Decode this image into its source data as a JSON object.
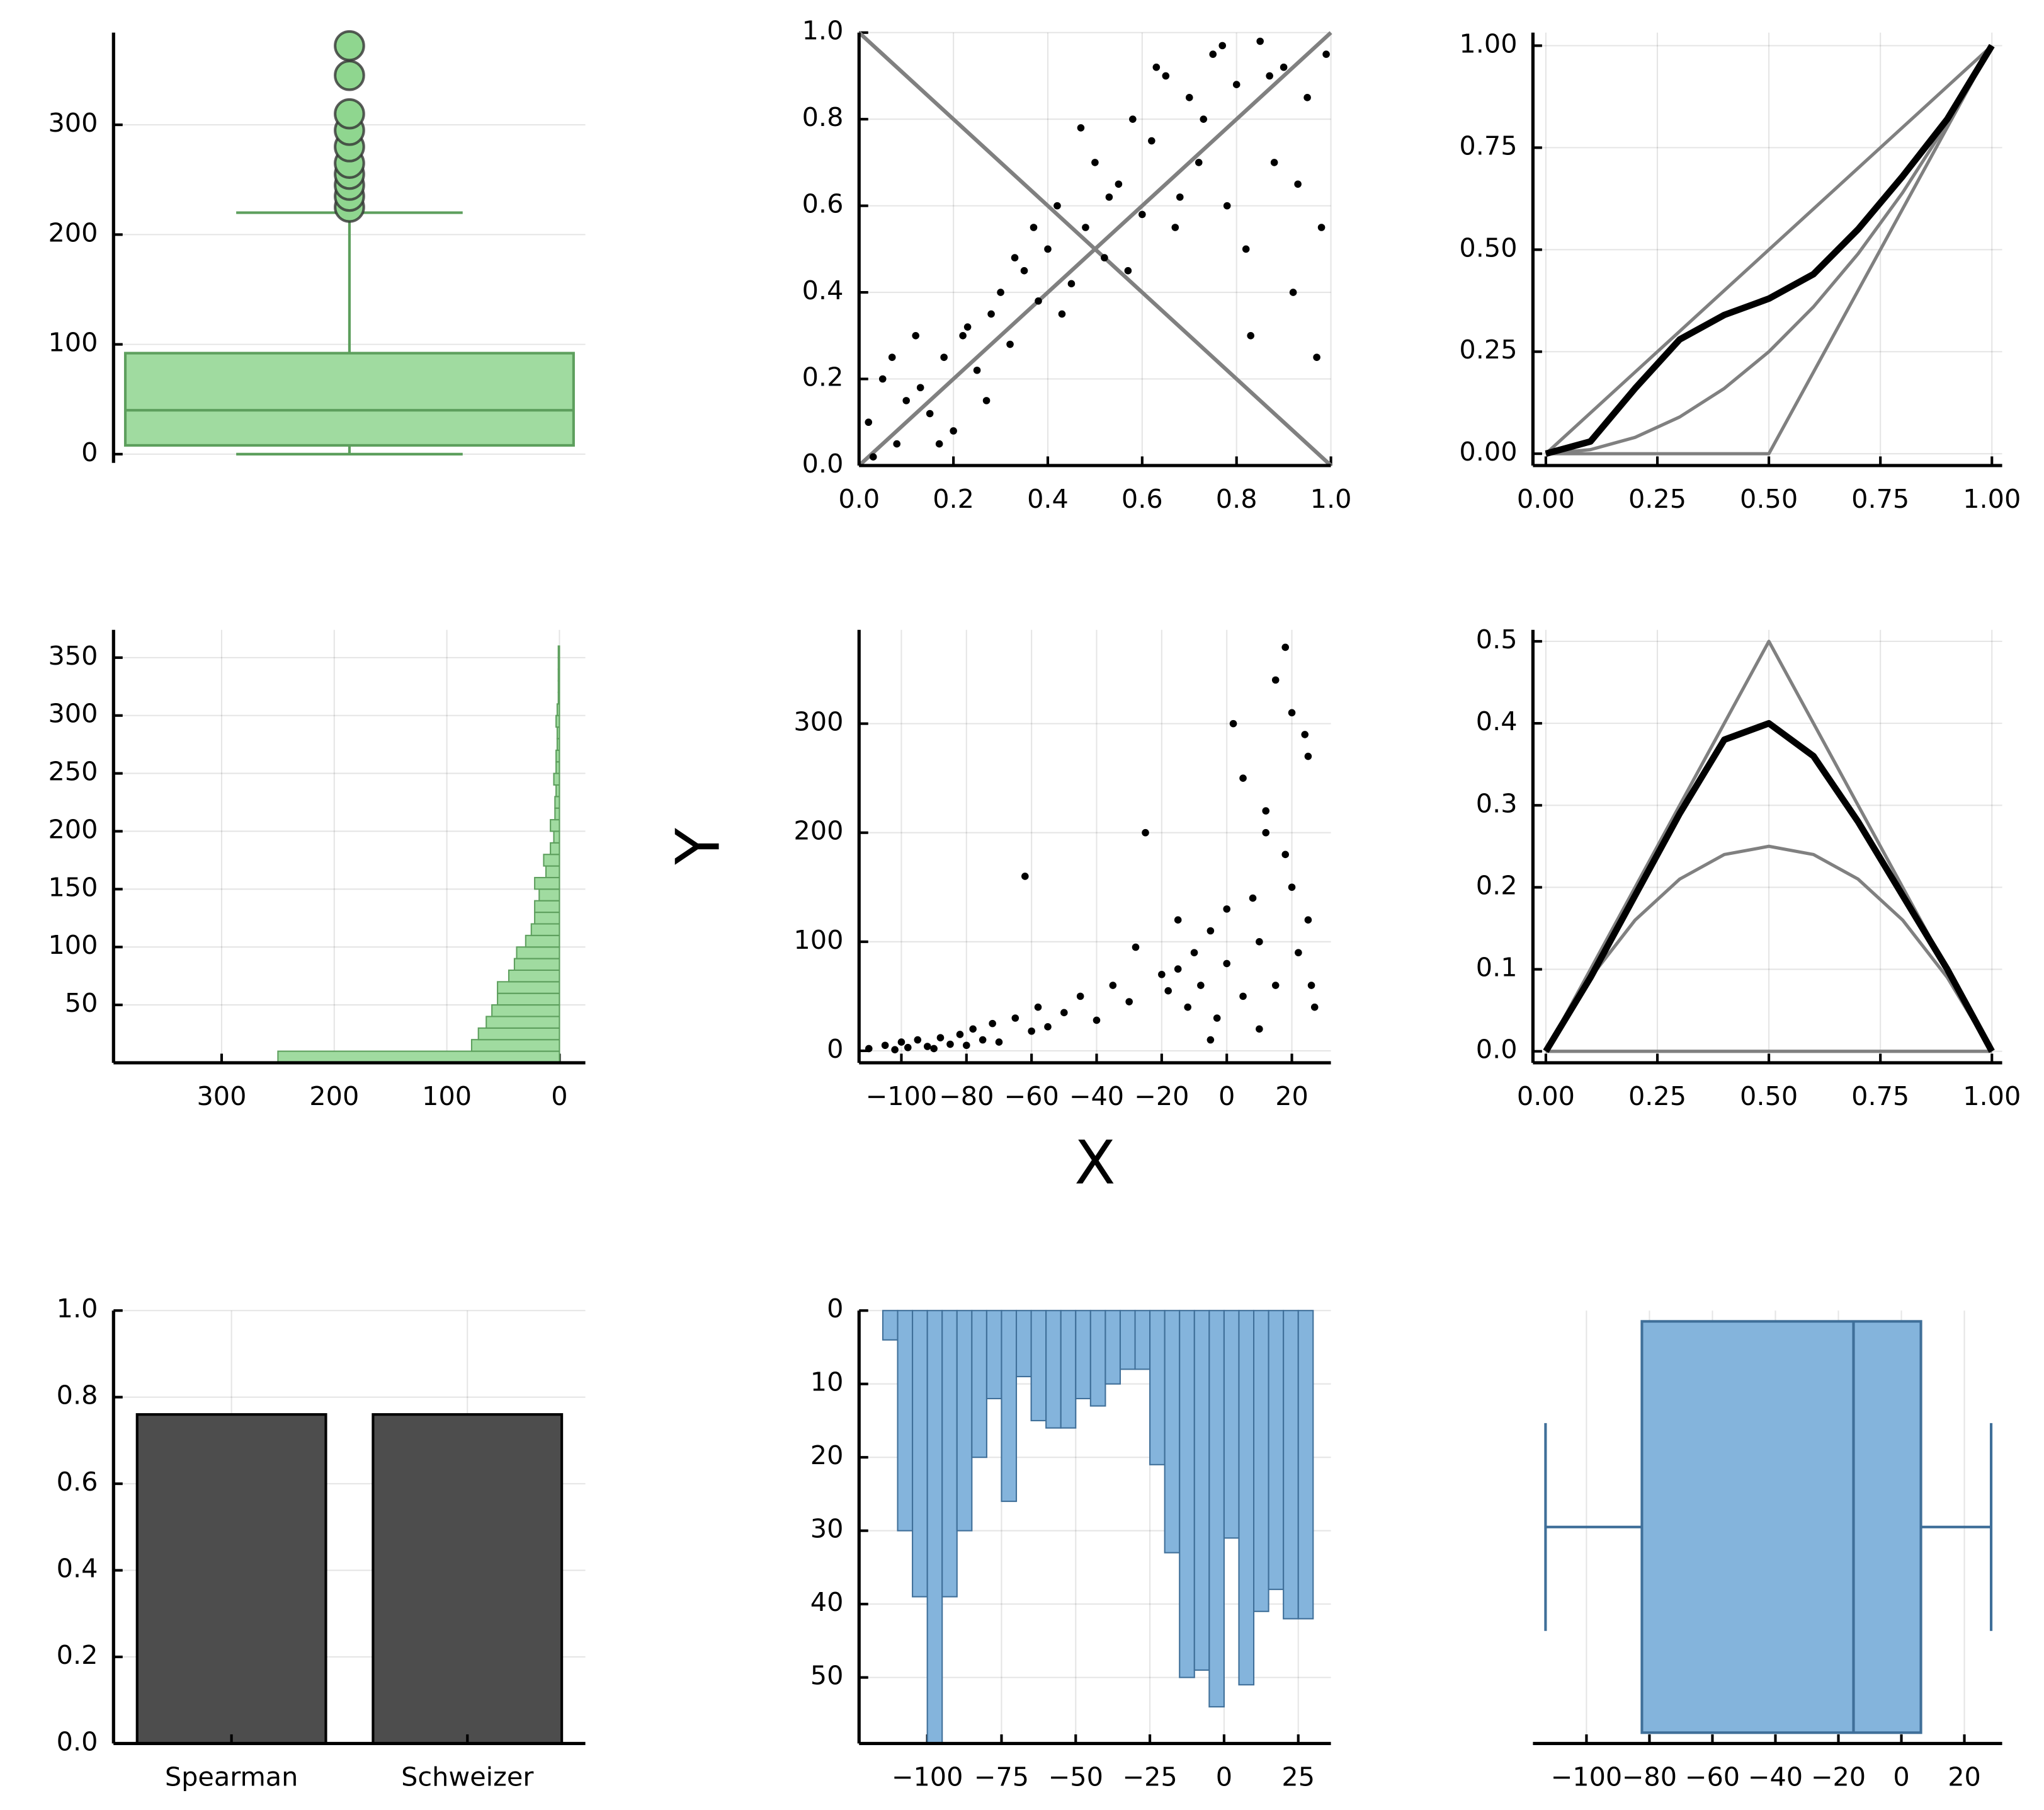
{
  "chart_data": [
    {
      "type": "box",
      "orient": "vertical",
      "fill": "#a0dba0",
      "stroke": "#5d9f5d",
      "flier_color": "#8fd68f",
      "ylim": [
        -8,
        384
      ],
      "yticks": [
        0,
        100,
        200,
        300
      ],
      "grid": true,
      "q1": 8,
      "median": 40,
      "q3": 92,
      "whislo": 0,
      "whishi": 220,
      "fliers": [
        225,
        235,
        245,
        255,
        265,
        280,
        295,
        310,
        345,
        372
      ]
    },
    {
      "type": "scatter",
      "color": "#000000",
      "grid": true,
      "xlim": [
        0,
        1
      ],
      "ylim": [
        0,
        1
      ],
      "xticks": [
        {
          "value": 0,
          "label": "0.0"
        },
        {
          "value": 0.2,
          "label": "0.2"
        },
        {
          "value": 0.4,
          "label": "0.4"
        },
        {
          "value": 0.6,
          "label": "0.6"
        },
        {
          "value": 0.8,
          "label": "0.8"
        },
        {
          "value": 1,
          "label": "1.0"
        }
      ],
      "yticks": [
        {
          "value": 0,
          "label": "0.0"
        },
        {
          "value": 0.2,
          "label": "0.2"
        },
        {
          "value": 0.4,
          "label": "0.4"
        },
        {
          "value": 0.6,
          "label": "0.6"
        },
        {
          "value": 0.8,
          "label": "0.8"
        },
        {
          "value": 1,
          "label": "1.0"
        }
      ],
      "x": [
        0.02,
        0.05,
        0.08,
        0.1,
        0.12,
        0.15,
        0.18,
        0.2,
        0.22,
        0.25,
        0.28,
        0.3,
        0.32,
        0.35,
        0.38,
        0.4,
        0.42,
        0.45,
        0.48,
        0.5,
        0.52,
        0.55,
        0.58,
        0.6,
        0.62,
        0.65,
        0.68,
        0.7,
        0.72,
        0.75,
        0.78,
        0.8,
        0.82,
        0.85,
        0.88,
        0.9,
        0.92,
        0.95,
        0.98,
        0.03,
        0.07,
        0.13,
        0.17,
        0.23,
        0.27,
        0.33,
        0.37,
        0.43,
        0.47,
        0.53,
        0.57,
        0.63,
        0.67,
        0.73,
        0.77,
        0.83,
        0.87,
        0.93,
        0.97,
        0.99
      ],
      "y": [
        0.1,
        0.2,
        0.05,
        0.15,
        0.3,
        0.12,
        0.25,
        0.08,
        0.3,
        0.22,
        0.35,
        0.4,
        0.28,
        0.45,
        0.38,
        0.5,
        0.6,
        0.42,
        0.55,
        0.7,
        0.48,
        0.65,
        0.8,
        0.58,
        0.75,
        0.9,
        0.62,
        0.85,
        0.7,
        0.95,
        0.6,
        0.88,
        0.5,
        0.98,
        0.7,
        0.92,
        0.4,
        0.85,
        0.55,
        0.02,
        0.25,
        0.18,
        0.05,
        0.32,
        0.15,
        0.48,
        0.55,
        0.35,
        0.78,
        0.62,
        0.45,
        0.92,
        0.55,
        0.8,
        0.97,
        0.3,
        0.9,
        0.65,
        0.25,
        0.95
      ],
      "lines": [
        {
          "color": "#808080",
          "x": [
            0,
            1
          ],
          "y": [
            0,
            1
          ]
        },
        {
          "color": "#808080",
          "x": [
            0,
            1
          ],
          "y": [
            1,
            0
          ]
        }
      ]
    },
    {
      "type": "line",
      "grid": true,
      "xlim": [
        -0.029,
        1.023
      ],
      "ylim": [
        -0.029,
        1.032
      ],
      "xticks": [
        {
          "value": 0,
          "label": "0.00"
        },
        {
          "value": 0.25,
          "label": "0.25"
        },
        {
          "value": 0.5,
          "label": "0.50"
        },
        {
          "value": 0.75,
          "label": "0.75"
        },
        {
          "value": 1,
          "label": "1.00"
        }
      ],
      "yticks": [
        {
          "value": 0,
          "label": "0.00"
        },
        {
          "value": 0.25,
          "label": "0.25"
        },
        {
          "value": 0.5,
          "label": "0.50"
        },
        {
          "value": 0.75,
          "label": "0.75"
        },
        {
          "value": 1,
          "label": "1.00"
        }
      ],
      "x": [
        0,
        0.1,
        0.2,
        0.3,
        0.4,
        0.5,
        0.6,
        0.7,
        0.8,
        0.9,
        1
      ],
      "series": [
        {
          "color": "#808080",
          "width": 2.5,
          "values": [
            0,
            0.1,
            0.2,
            0.3,
            0.4,
            0.5,
            0.6,
            0.7,
            0.8,
            0.9,
            1
          ]
        },
        {
          "color": "#808080",
          "width": 2.5,
          "values": [
            0,
            0.01,
            0.04,
            0.09,
            0.16,
            0.25,
            0.36,
            0.49,
            0.64,
            0.81,
            1
          ]
        },
        {
          "color": "#808080",
          "width": 2.5,
          "values": [
            0,
            0,
            0,
            0,
            0,
            0,
            0.2,
            0.4,
            0.6,
            0.8,
            1
          ]
        },
        {
          "color": "#000000",
          "width": 5,
          "values": [
            0,
            0.03,
            0.16,
            0.28,
            0.34,
            0.38,
            0.44,
            0.55,
            0.68,
            0.82,
            1
          ]
        }
      ]
    },
    {
      "type": "hist",
      "orient": "horizontal",
      "fill": "#a0dba0",
      "stroke": "#5d9f5d",
      "grid": true,
      "xlim": [
        -23,
        396
      ],
      "xflip": true,
      "xticks": [
        300,
        200,
        100,
        0
      ],
      "ylim": [
        0,
        374
      ],
      "yticks": [
        50,
        100,
        150,
        200,
        250,
        300,
        350
      ],
      "bins": [
        0,
        10,
        20,
        30,
        40,
        50,
        60,
        70,
        80,
        90,
        100,
        110,
        120,
        130,
        140,
        150,
        160,
        170,
        180,
        190,
        200,
        210,
        220,
        230,
        240,
        250,
        260,
        270,
        280,
        290,
        300,
        310,
        320,
        330,
        340,
        350,
        360
      ],
      "counts": [
        250,
        78,
        72,
        65,
        60,
        55,
        55,
        45,
        40,
        38,
        30,
        25,
        22,
        22,
        18,
        22,
        12,
        14,
        8,
        5,
        8,
        4,
        4,
        3,
        5,
        3,
        3,
        2,
        2,
        3,
        2,
        1,
        1,
        1,
        1,
        1
      ]
    },
    {
      "type": "scatter",
      "color": "#000000",
      "grid": true,
      "xlabel": "X",
      "ylabel": "Y",
      "xlim": [
        -113,
        32
      ],
      "ylim": [
        -11,
        386
      ],
      "xticks": [
        {
          "value": -100,
          "label": "−100"
        },
        {
          "value": -80,
          "label": "−80"
        },
        {
          "value": -60,
          "label": "−60"
        },
        {
          "value": -40,
          "label": "−40"
        },
        {
          "value": -20,
          "label": "−20"
        },
        0,
        20
      ],
      "yticks": [
        0,
        100,
        200,
        300
      ],
      "x": [
        -110,
        -105,
        -102,
        -100,
        -98,
        -95,
        -92,
        -90,
        -88,
        -85,
        -82,
        -80,
        -78,
        -75,
        -72,
        -70,
        -65,
        -60,
        -58,
        -55,
        -50,
        -45,
        -40,
        -35,
        -30,
        -25,
        -20,
        -18,
        -15,
        -12,
        -10,
        -8,
        -5,
        -3,
        0,
        2,
        5,
        8,
        10,
        12,
        15,
        18,
        20,
        22,
        25,
        27,
        -62,
        -28,
        -15,
        5,
        10,
        15,
        20,
        25,
        0,
        -5,
        12,
        18,
        24,
        26
      ],
      "y": [
        2,
        5,
        1,
        8,
        3,
        10,
        4,
        2,
        12,
        6,
        15,
        5,
        20,
        10,
        25,
        8,
        30,
        18,
        40,
        22,
        35,
        50,
        28,
        60,
        45,
        200,
        70,
        55,
        120,
        40,
        90,
        60,
        110,
        30,
        80,
        300,
        50,
        140,
        100,
        220,
        60,
        180,
        310,
        90,
        270,
        40,
        160,
        95,
        75,
        250,
        20,
        340,
        150,
        120,
        130,
        10,
        200,
        370,
        290,
        60
      ]
    },
    {
      "type": "line",
      "grid": true,
      "xlim": [
        -0.029,
        1.023
      ],
      "ylim": [
        -0.014,
        0.514
      ],
      "xticks": [
        {
          "value": 0,
          "label": "0.00"
        },
        {
          "value": 0.25,
          "label": "0.25"
        },
        {
          "value": 0.5,
          "label": "0.50"
        },
        {
          "value": 0.75,
          "label": "0.75"
        },
        {
          "value": 1,
          "label": "1.00"
        }
      ],
      "yticks": [
        {
          "value": 0,
          "label": "0.0"
        },
        0.1,
        0.2,
        0.3,
        0.4,
        0.5
      ],
      "x": [
        0,
        0.1,
        0.2,
        0.3,
        0.4,
        0.5,
        0.6,
        0.7,
        0.8,
        0.9,
        1
      ],
      "series": [
        {
          "color": "#808080",
          "width": 2.5,
          "values": [
            0,
            0.1,
            0.2,
            0.3,
            0.4,
            0.5,
            0.4,
            0.3,
            0.2,
            0.1,
            0
          ]
        },
        {
          "color": "#808080",
          "width": 2.5,
          "values": [
            0,
            0.09,
            0.16,
            0.21,
            0.24,
            0.25,
            0.24,
            0.21,
            0.16,
            0.09,
            0
          ]
        },
        {
          "color": "#808080",
          "width": 2.5,
          "values": [
            0,
            0,
            0,
            0,
            0,
            0,
            0,
            0,
            0,
            0,
            0
          ]
        },
        {
          "color": "#000000",
          "width": 5,
          "values": [
            0,
            0.09,
            0.19,
            0.29,
            0.38,
            0.4,
            0.36,
            0.28,
            0.19,
            0.1,
            0
          ]
        }
      ]
    },
    {
      "type": "bar",
      "color": "#4d4d4d",
      "grid": true,
      "ylim": [
        0,
        1
      ],
      "yticks": [
        {
          "value": 0,
          "label": "0.0"
        },
        0.2,
        0.4,
        0.6,
        0.8,
        {
          "value": 1,
          "label": "1.0"
        }
      ],
      "categories": [
        "Spearman",
        "Schweizer"
      ],
      "values": [
        0.76,
        0.76
      ]
    },
    {
      "type": "hist",
      "orient": "vertical",
      "fill": "#84b4dc",
      "stroke": "#3f6f99",
      "grid": true,
      "xlim": [
        -123,
        36
      ],
      "xticks": [
        {
          "value": -100,
          "label": "−100"
        },
        {
          "value": -75,
          "label": "−75"
        },
        {
          "value": -50,
          "label": "−50"
        },
        {
          "value": -25,
          "label": "−25"
        },
        0,
        25
      ],
      "ylim": [
        0,
        59
      ],
      "yflip": true,
      "yticks": [
        0,
        10,
        20,
        30,
        40,
        50
      ],
      "bins": [
        -115,
        -110,
        -105,
        -100,
        -95,
        -90,
        -85,
        -80,
        -75,
        -70,
        -65,
        -60,
        -55,
        -50,
        -45,
        -40,
        -35,
        -30,
        -25,
        -20,
        -15,
        -10,
        -5,
        0,
        5,
        10,
        15,
        20,
        25,
        30
      ],
      "counts": [
        4,
        30,
        39,
        59,
        39,
        30,
        20,
        12,
        26,
        9,
        15,
        16,
        16,
        12,
        13,
        10,
        8,
        8,
        21,
        33,
        50,
        49,
        54,
        31,
        51,
        41,
        38,
        42,
        42
      ]
    },
    {
      "type": "box",
      "orient": "horizontal",
      "fill": "#84b4dc",
      "stroke": "#3f6f99",
      "grid": true,
      "xlim": [
        -117,
        32
      ],
      "xticks": [
        {
          "value": -100,
          "label": "−100"
        },
        {
          "value": -80,
          "label": "−80"
        },
        {
          "value": -60,
          "label": "−60"
        },
        {
          "value": -40,
          "label": "−40"
        },
        {
          "value": -20,
          "label": "−20"
        },
        0,
        20
      ],
      "q1": -82.4,
      "median": -15.2,
      "q3": 6.2,
      "whislo": -113,
      "whishi": 28.5
    }
  ]
}
